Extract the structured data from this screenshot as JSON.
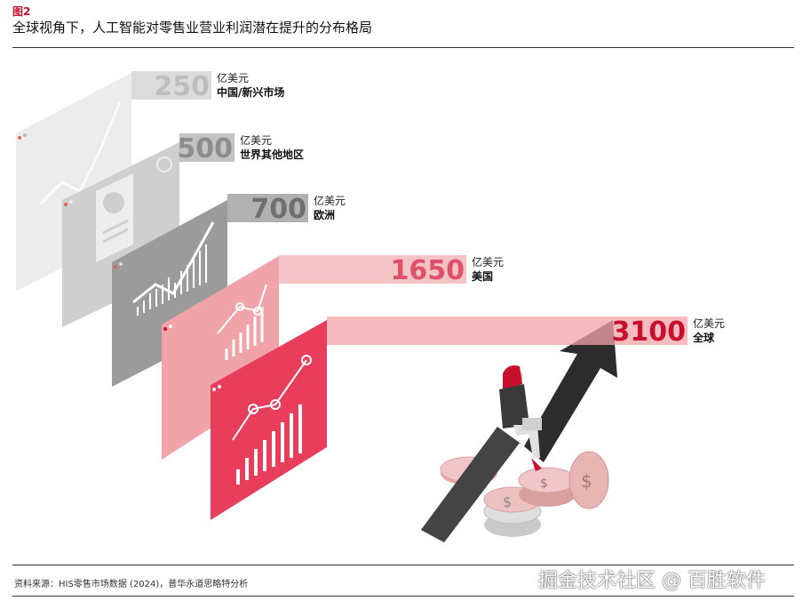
{
  "figure_label": "图2",
  "title": "全球视角下，人工智能对零售业营业利润潜在提升的分布格局",
  "chart_data": {
    "type": "bar",
    "categories": [
      "中国/新兴市场",
      "世界其他地区",
      "欧洲",
      "美国",
      "全球"
    ],
    "values": [
      250,
      500,
      700,
      1650,
      3100
    ],
    "value_labels": [
      "250",
      "500",
      "700",
      "1650",
      "3100"
    ],
    "unit": "亿美元",
    "colors": [
      "#d5d5d5",
      "#b8b8b8",
      "#a3a3a3",
      "#f2b8bb",
      "#f4a3aa"
    ],
    "text_colors": [
      "#bdbdbd",
      "#8c8c8c",
      "#6f6f6f",
      "#e0506a",
      "#c8102e"
    ]
  },
  "source": "资料来源：HIS零售市场数据 (2024)，普华永道思略特分析",
  "watermark": "掘金技术社区 @ 百胜软件"
}
